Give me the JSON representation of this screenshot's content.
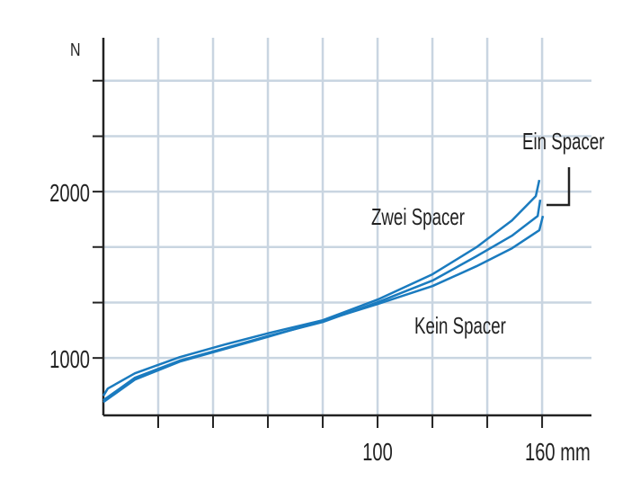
{
  "chart_data": {
    "type": "line",
    "title": "",
    "xlabel": "",
    "ylabel": "N",
    "x_unit": "mm",
    "xlim": [
      0,
      178
    ],
    "ylim": [
      655,
      2925
    ],
    "xticks": [
      20,
      40,
      60,
      80,
      100,
      120,
      140,
      160
    ],
    "xtick_labels": [
      {
        "value": 100,
        "label": "100"
      },
      {
        "value": 160,
        "label": "160 mm"
      }
    ],
    "yticks": [
      1000,
      1333,
      1667,
      2000,
      2333,
      2667
    ],
    "ytick_labels": [
      {
        "value": 1000,
        "label": "1000"
      },
      {
        "value": 2000,
        "label": "2000"
      }
    ],
    "grid": true,
    "colors": {
      "line": "#1a7bbf",
      "grid": "#c9d5e1",
      "axis": "#222222"
    },
    "series": [
      {
        "name": "Zwei Spacer",
        "x": [
          0,
          1.6,
          11.5,
          27.9,
          44.3,
          60.7,
          80,
          100,
          120,
          136,
          149,
          157.7,
          159
        ],
        "y": [
          773,
          816,
          908,
          1005,
          1081,
          1151,
          1227,
          1351,
          1503,
          1665,
          1827,
          1973,
          2070
        ]
      },
      {
        "name": "Ein Spacer",
        "x": [
          0,
          11.5,
          27.9,
          44.3,
          60.7,
          80,
          100,
          120,
          136,
          149,
          158.4,
          159.3
        ],
        "y": [
          746,
          881,
          984,
          1059,
          1135,
          1216,
          1335,
          1465,
          1611,
          1735,
          1854,
          1951
        ]
      },
      {
        "name": "Kein Spacer",
        "x": [
          0,
          11.5,
          27.9,
          44.3,
          60.7,
          80,
          100,
          120,
          136,
          149,
          159,
          160.3
        ],
        "y": [
          735,
          870,
          978,
          1054,
          1130,
          1222,
          1324,
          1432,
          1551,
          1659,
          1768,
          1854
        ]
      }
    ],
    "annotations": [
      {
        "text": "Zwei Spacer",
        "series": "Zwei Spacer"
      },
      {
        "text": "Ein Spacer",
        "series": "Ein Spacer"
      },
      {
        "text": "Kein Spacer",
        "series": "Kein Spacer"
      }
    ]
  }
}
